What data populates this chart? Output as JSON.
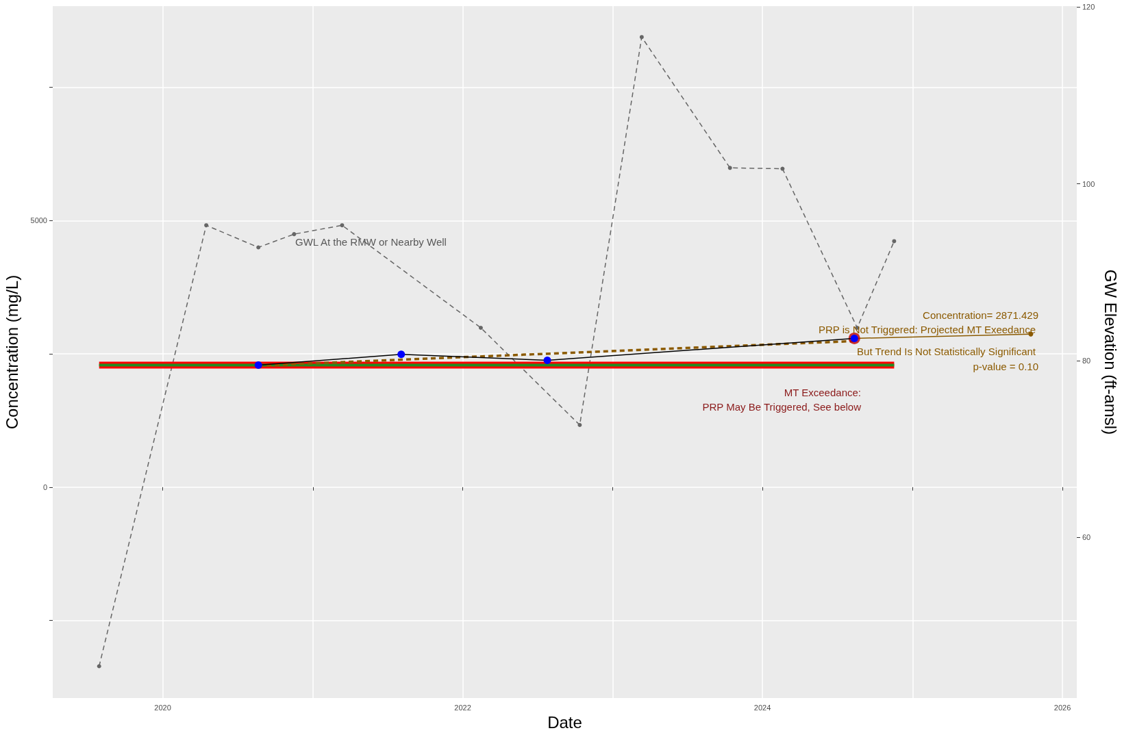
{
  "chart_data": {
    "type": "line",
    "xlabel": "Date",
    "ylabel": "Concentration (mg/L)",
    "y2label": "GW Elevation (ft-amsl)",
    "xlim": [
      "2019-04-08",
      "2026-02-05"
    ],
    "xticks": [
      {
        "value": "2020-01-01",
        "label": "2020"
      },
      {
        "value": "2021-01-01",
        "label": null
      },
      {
        "value": "2022-01-01",
        "label": "2022"
      },
      {
        "value": "2023-01-01",
        "label": null
      },
      {
        "value": "2024-01-01",
        "label": "2024"
      },
      {
        "value": "2025-01-01",
        "label": null
      },
      {
        "value": "2026-01-01",
        "label": "2026"
      }
    ],
    "ylim": [
      -3955,
      9021
    ],
    "yticks": [
      {
        "value": -2500,
        "label": null
      },
      0,
      {
        "value": 2500,
        "label": null
      },
      5000,
      {
        "value": 7500,
        "label": null
      }
    ],
    "y2lim": [
      41.8,
      120.1
    ],
    "y2ticks": [
      60,
      80,
      100,
      120
    ],
    "grid": true,
    "annotations": [
      "GWL At the RMW or Nearby Well",
      "Concentration= 2871.429",
      "PRP is Not Triggered: Projected MT Exeedance",
      "But Trend Is Not Statistically Significant",
      "p-value = 0.10",
      "MT Exceedance:",
      "PRP May Be Triggered, See below"
    ],
    "series": [
      {
        "axis": "y2",
        "color": "#666666",
        "line_style": "dashed",
        "marker": "circle",
        "x": [
          "2019-07-30",
          "2020-04-16",
          "2020-08-21",
          "2020-11-16",
          "2021-03-13",
          "2022-02-14",
          "2022-10-13",
          "2023-03-13",
          "2023-10-14",
          "2024-02-19",
          "2024-08-19",
          "2024-11-17"
        ],
        "values": [
          45.4,
          95.3,
          92.8,
          94.3,
          95.3,
          83.7,
          72.7,
          116.6,
          101.8,
          101.7,
          83.7,
          93.5
        ]
      },
      {
        "color": "#ff0000",
        "line_style": "solid",
        "marker": "none",
        "x": [
          "2019-07-30",
          "2024-11-17"
        ],
        "values": [
          2290,
          2290
        ]
      },
      {
        "color": "#228b22",
        "line_style": "solid",
        "marker": "none",
        "x": [
          "2019-07-30",
          "2024-11-17"
        ],
        "values": [
          2290,
          2290
        ]
      },
      {
        "color": "#8b5a00",
        "line_style": "dashed",
        "marker": "none",
        "x": [
          "2020-08-21",
          "2024-08-12"
        ],
        "values": [
          2280,
          2740
        ]
      },
      {
        "color": "#8b5a00",
        "line_style": "solid",
        "marker": "circle",
        "x": [
          "2024-08-12",
          "2025-10-16"
        ],
        "values": [
          2790,
          2871.429
        ]
      },
      {
        "type": "scatter",
        "color": "#c00000",
        "marker": "circle",
        "x": [
          "2024-08-12"
        ],
        "values": [
          2790
        ]
      },
      {
        "color": "#000000",
        "colors": [
          "#0000ff",
          "#0000ff",
          "#0000ff",
          "#0000ff"
        ],
        "line_style": "solid",
        "marker": "circle",
        "x": [
          "2020-08-21",
          "2021-08-04",
          "2022-07-26",
          "2024-08-12"
        ],
        "values": [
          2290,
          2490,
          2380,
          2790
        ]
      }
    ]
  }
}
